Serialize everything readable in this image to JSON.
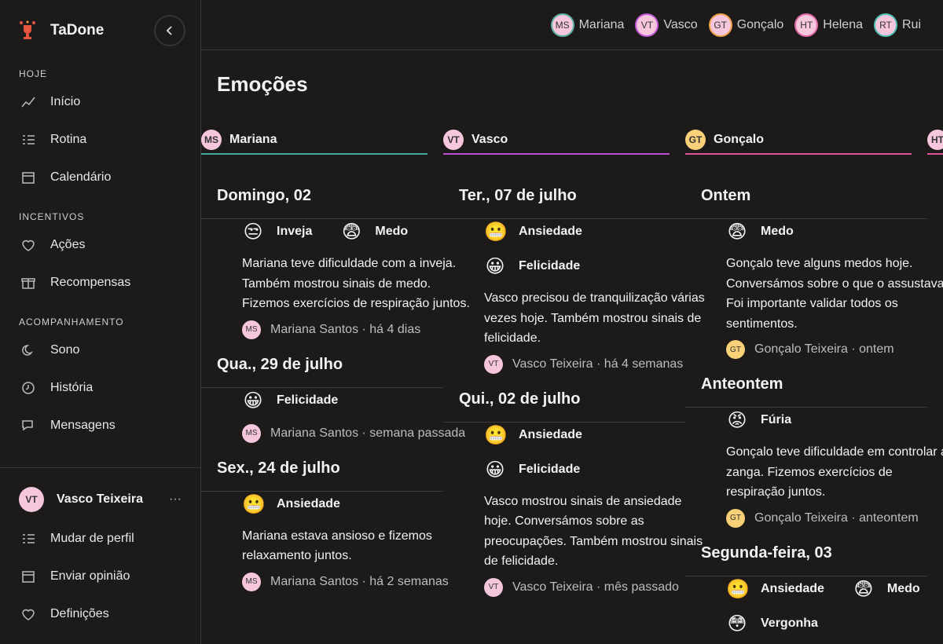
{
  "sidebar": {
    "brand": "TaDone",
    "sections": [
      {
        "title": "HOJE",
        "items": [
          "Início",
          "Rotina",
          "Calendário"
        ]
      },
      {
        "title": "INCENTIVOS",
        "items": [
          "Ações",
          "Recompensas"
        ]
      },
      {
        "title": "ACOMPANHAMENTO",
        "items": [
          "Sono",
          "História",
          "Mensagens"
        ]
      }
    ],
    "user": {
      "initials": "VT",
      "name": "Vasco Teixeira",
      "more": "···"
    },
    "footer": [
      "Mudar de perfil",
      "Enviar opinião",
      "Definições"
    ]
  },
  "topbar": {
    "people": [
      {
        "initials": "MS",
        "name": "Mariana",
        "color": "#5fb3a8"
      },
      {
        "initials": "VT",
        "name": "Vasco",
        "color": "#c157d6"
      },
      {
        "initials": "GT",
        "name": "Gonçalo",
        "color": "#f0a24a"
      },
      {
        "initials": "HT",
        "name": "Helena",
        "color": "#e06aa7"
      },
      {
        "initials": "RT",
        "name": "Rui",
        "color": "#4fc3b4"
      }
    ]
  },
  "page": {
    "title": "Emoções",
    "columns": [
      {
        "initials": "MS",
        "name": "Mariana",
        "color": "#3fa997",
        "avatar": "#f6c6dd",
        "groups": [
          {
            "date": "Domingo, 02",
            "entries": [
              {
                "emotion_rows": [
                  [
                    {
                      "icon": "😒",
                      "label": "Inveja"
                    },
                    {
                      "icon": "😨",
                      "label": "Medo"
                    }
                  ]
                ],
                "text": "Mariana teve dificuldade com a inveja. Também mostrou sinais de medo. Fizemos exercícios de respiração juntos.",
                "author": "MS",
                "footer": "Mariana Santos · há 4 dias"
              }
            ]
          },
          {
            "date": "Qua., 29 de julho",
            "entries": [
              {
                "emotion_rows": [
                  [
                    {
                      "icon": "😀",
                      "label": "Felicidade"
                    }
                  ]
                ],
                "author": "MS",
                "footer": "Mariana Santos · semana passada"
              }
            ]
          },
          {
            "date": "Sex., 24 de julho",
            "entries": [
              {
                "emotion_rows": [
                  [
                    {
                      "icon": "😬",
                      "label": "Ansiedade"
                    }
                  ]
                ],
                "text": "Mariana estava ansioso e fizemos relaxamento juntos.",
                "author": "MS",
                "footer": "Mariana Santos · há 2 semanas"
              }
            ]
          }
        ]
      },
      {
        "initials": "VT",
        "name": "Vasco",
        "color": "#b84fd0",
        "avatar": "#f6c6dd",
        "groups": [
          {
            "date": "Ter., 07 de julho",
            "entries": [
              {
                "emotion_rows": [
                  [
                    {
                      "icon": "😬",
                      "label": "Ansiedade"
                    }
                  ],
                  [
                    {
                      "icon": "😀",
                      "label": "Felicidade"
                    }
                  ]
                ],
                "text": "Vasco precisou de tranquilização várias vezes hoje. Também mostrou sinais de felicidade.",
                "author": "VT",
                "footer": "Vasco Teixeira · há 4 semanas"
              }
            ]
          },
          {
            "date": "Qui., 02 de julho",
            "entries": [
              {
                "emotion_rows": [
                  [
                    {
                      "icon": "😬",
                      "label": "Ansiedade"
                    }
                  ],
                  [
                    {
                      "icon": "😀",
                      "label": "Felicidade"
                    }
                  ]
                ],
                "text": "Vasco mostrou sinais de ansiedade hoje. Conversámos sobre as preocupações. Também mostrou sinais de felicidade.",
                "author": "VT",
                "footer": "Vasco Teixeira · mês passado"
              }
            ]
          }
        ]
      },
      {
        "initials": "GT",
        "name": "Gonçalo",
        "color": "#e0559a",
        "avatar": "#f7d078",
        "groups": [
          {
            "date": "Ontem",
            "entries": [
              {
                "emotion_rows": [
                  [
                    {
                      "icon": "😨",
                      "label": "Medo"
                    }
                  ]
                ],
                "text": "Gonçalo teve alguns medos hoje. Conversámos sobre o que o assustava. Foi importante validar todos os sentimentos.",
                "author": "GT",
                "footer": "Gonçalo Teixeira · ontem"
              }
            ]
          },
          {
            "date": "Anteontem",
            "entries": [
              {
                "emotion_rows": [
                  [
                    {
                      "icon": "😡",
                      "label": "Fúria"
                    }
                  ]
                ],
                "text": "Gonçalo teve dificuldade em controlar a zanga. Fizemos exercícios de respiração juntos.",
                "author": "GT",
                "footer": "Gonçalo Teixeira · anteontem"
              }
            ]
          },
          {
            "date": "Segunda-feira, 03",
            "entries": [
              {
                "emotion_rows": [
                  [
                    {
                      "icon": "😬",
                      "label": "Ansiedade"
                    },
                    {
                      "icon": "😨",
                      "label": "Medo"
                    }
                  ],
                  [
                    {
                      "icon": "😳",
                      "label": "Vergonha"
                    }
                  ]
                ]
              }
            ]
          }
        ]
      },
      {
        "initials": "HT",
        "color": "#e0559a",
        "avatar": "#f6c6dd",
        "groups": []
      }
    ]
  }
}
